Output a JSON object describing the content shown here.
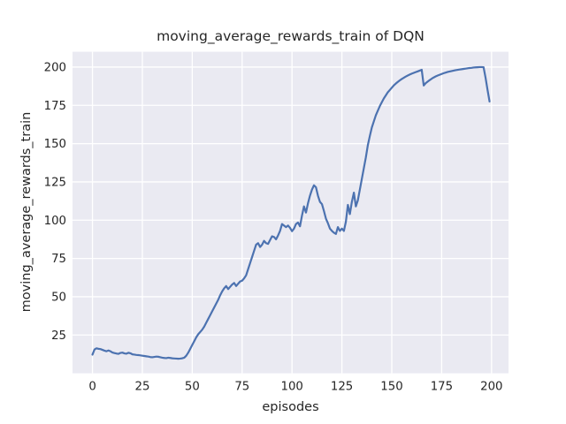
{
  "chart_data": {
    "type": "line",
    "title": "moving_average_rewards_train of DQN",
    "xlabel": "episodes",
    "ylabel": "moving_average_rewards_train",
    "x_ticks": [
      0,
      25,
      50,
      75,
      100,
      125,
      150,
      175,
      200
    ],
    "y_ticks": [
      25,
      50,
      75,
      100,
      125,
      150,
      175,
      200
    ],
    "xlim": [
      -10,
      208.5
    ],
    "ylim": [
      0,
      210
    ],
    "grid": true,
    "legend": "none",
    "plot_bg": "#EAEAF2",
    "figure_bg": "#FFFFFF",
    "grid_color": "#FFFFFF",
    "line_color": "#4C72B0",
    "text_color": "#262626",
    "series": [
      {
        "name": "moving_average_rewards_train",
        "x": [
          0,
          1,
          2,
          3,
          4,
          5,
          6,
          7,
          8,
          9,
          10,
          11,
          12,
          13,
          14,
          15,
          16,
          17,
          18,
          19,
          20,
          21,
          22,
          23,
          24,
          25,
          26,
          27,
          28,
          29,
          30,
          31,
          32,
          33,
          34,
          35,
          36,
          37,
          38,
          39,
          40,
          41,
          42,
          43,
          44,
          45,
          46,
          47,
          48,
          49,
          50,
          51,
          52,
          53,
          54,
          55,
          56,
          57,
          58,
          59,
          60,
          61,
          62,
          63,
          64,
          65,
          66,
          67,
          68,
          69,
          70,
          71,
          72,
          73,
          74,
          75,
          76,
          77,
          78,
          79,
          80,
          81,
          82,
          83,
          84,
          85,
          86,
          87,
          88,
          89,
          90,
          91,
          92,
          93,
          94,
          95,
          96,
          97,
          98,
          99,
          100,
          101,
          102,
          103,
          104,
          105,
          106,
          107,
          108,
          109,
          110,
          111,
          112,
          113,
          114,
          115,
          116,
          117,
          118,
          119,
          120,
          121,
          122,
          123,
          124,
          125,
          126,
          127,
          128,
          129,
          130,
          131,
          132,
          133,
          134,
          135,
          136,
          137,
          138,
          139,
          140,
          141,
          142,
          143,
          144,
          145,
          146,
          147,
          148,
          149,
          150,
          151,
          152,
          153,
          154,
          155,
          156,
          157,
          158,
          159,
          160,
          161,
          162,
          163,
          164,
          165,
          166,
          167,
          168,
          169,
          170,
          171,
          172,
          173,
          174,
          175,
          176,
          177,
          178,
          179,
          180,
          181,
          182,
          183,
          184,
          185,
          186,
          187,
          188,
          189,
          190,
          191,
          192,
          193,
          194,
          195,
          196,
          197,
          198,
          199
        ],
        "y": [
          12.2,
          15.5,
          16.3,
          16.0,
          15.8,
          15.3,
          14.8,
          14.4,
          14.9,
          14.4,
          13.6,
          13.2,
          12.9,
          12.7,
          13.3,
          13.5,
          13.0,
          12.8,
          13.4,
          13.1,
          12.4,
          12.2,
          12.0,
          11.9,
          11.7,
          11.5,
          11.3,
          11.1,
          10.9,
          10.6,
          10.5,
          10.7,
          10.9,
          10.8,
          10.5,
          10.2,
          10.0,
          9.9,
          10.2,
          10.0,
          9.8,
          9.7,
          9.6,
          9.5,
          9.6,
          9.8,
          10.2,
          11.5,
          13.5,
          16.0,
          18.5,
          21.0,
          23.5,
          25.5,
          27.0,
          28.5,
          30.5,
          33.0,
          35.5,
          38.0,
          40.5,
          43.0,
          45.5,
          48.0,
          51.0,
          53.5,
          55.5,
          57.0,
          55.0,
          56.5,
          58.0,
          59.0,
          57.0,
          58.5,
          60.0,
          60.5,
          62.0,
          64.0,
          68.0,
          72.0,
          76.0,
          80.0,
          84.0,
          85.0,
          82.5,
          84.0,
          86.5,
          85.0,
          84.5,
          87.0,
          89.5,
          89.0,
          87.5,
          90.0,
          93.0,
          97.5,
          96.5,
          95.5,
          96.5,
          95.0,
          92.8,
          94.5,
          97.5,
          98.5,
          96.0,
          103.0,
          109.0,
          105.0,
          111.0,
          116.0,
          120.0,
          122.8,
          121.5,
          116.0,
          112.0,
          110.5,
          106.0,
          101.0,
          98.0,
          94.5,
          93.0,
          91.8,
          91.0,
          95.5,
          93.0,
          94.5,
          93.0,
          99.0,
          110.0,
          104.0,
          112.0,
          118.0,
          109.0,
          113.0,
          120.0,
          127.0,
          134.0,
          141.0,
          149.0,
          155.0,
          160.5,
          164.5,
          168.5,
          171.5,
          174.5,
          177.0,
          179.5,
          181.5,
          183.5,
          185.0,
          186.5,
          188.0,
          189.2,
          190.3,
          191.3,
          192.2,
          193.0,
          193.8,
          194.5,
          195.1,
          195.7,
          196.2,
          196.7,
          197.2,
          197.7,
          198.2,
          188.0,
          189.5,
          190.5,
          191.5,
          192.4,
          193.2,
          193.9,
          194.5,
          195.0,
          195.5,
          196.0,
          196.4,
          196.8,
          197.1,
          197.4,
          197.7,
          198.0,
          198.2,
          198.4,
          198.6,
          198.8,
          199.0,
          199.2,
          199.4,
          199.5,
          199.7,
          199.8,
          199.9,
          200.0,
          200.0,
          199.9,
          193.0,
          185.0,
          177.5
        ]
      }
    ]
  }
}
